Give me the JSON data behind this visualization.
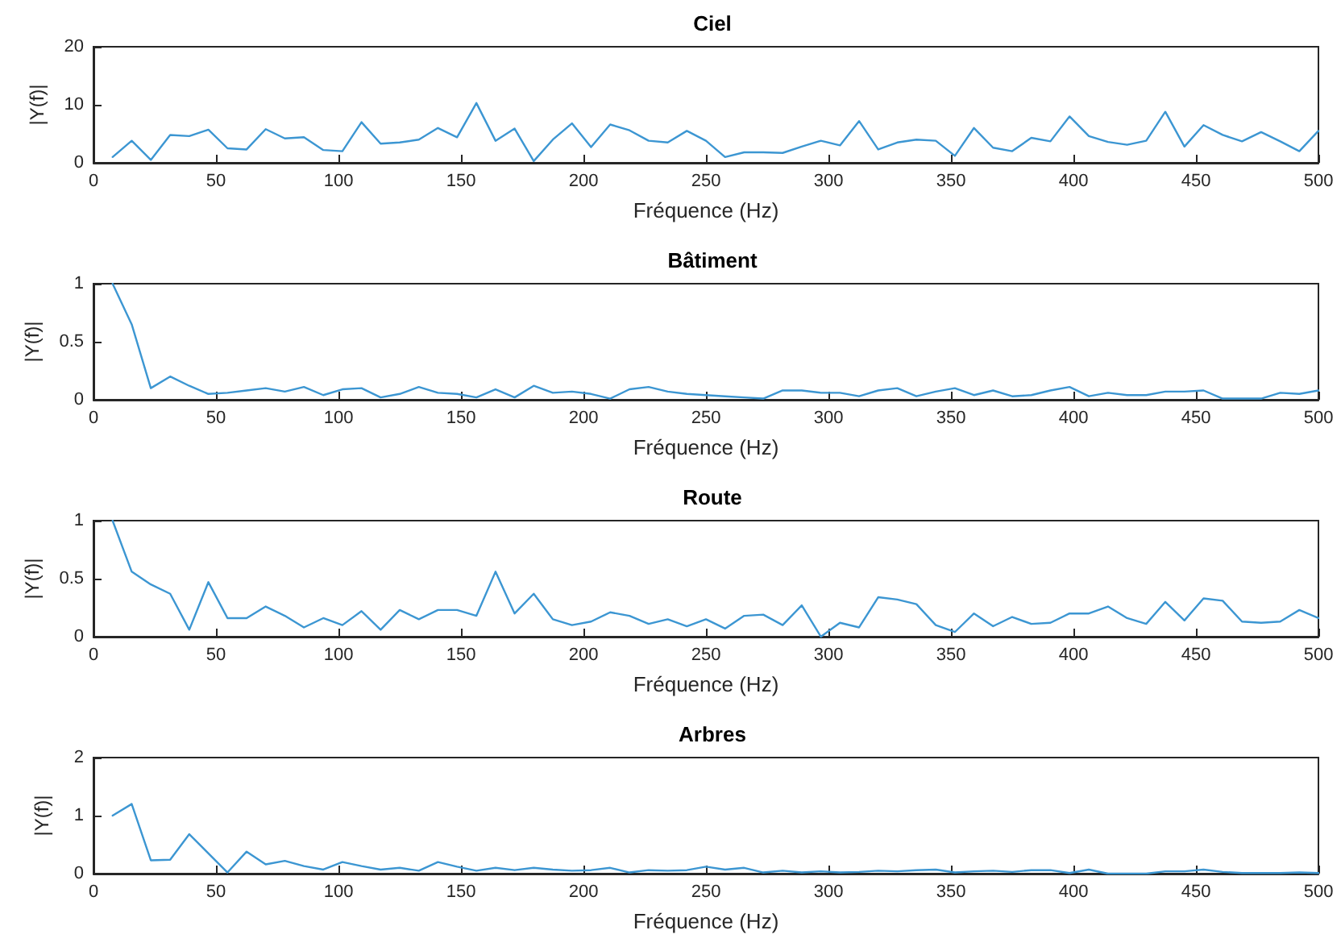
{
  "chart_data": [
    {
      "type": "line",
      "title": "Ciel",
      "xlabel": "Fréquence (Hz)",
      "ylabel": "|Y(f)|",
      "xlim": [
        0,
        500
      ],
      "xticks": [
        0,
        50,
        100,
        150,
        200,
        250,
        300,
        350,
        400,
        450,
        500
      ],
      "ylim": [
        0,
        20
      ],
      "yticks": [
        0,
        10,
        20
      ],
      "grid": false,
      "marker": "none",
      "line_style": "solid",
      "x": [
        7.8,
        15.6,
        23.4,
        31.3,
        39.1,
        46.9,
        54.7,
        62.5,
        70.3,
        78.1,
        85.9,
        93.8,
        101.6,
        109.4,
        117.2,
        125,
        132.8,
        140.6,
        148.4,
        156.3,
        164.1,
        171.9,
        179.7,
        187.5,
        195.3,
        203.1,
        210.9,
        218.8,
        226.6,
        234.4,
        242.2,
        250,
        257.8,
        265.6,
        273.4,
        281.3,
        289.1,
        296.9,
        304.7,
        312.5,
        320.3,
        328.1,
        335.9,
        343.8,
        351.6,
        359.4,
        367.2,
        375,
        382.8,
        390.6,
        398.4,
        406.3,
        414.1,
        421.9,
        429.7,
        437.5,
        445.3,
        453.1,
        460.9,
        468.8,
        476.6,
        484.4,
        492.2,
        500
      ],
      "series": [
        {
          "color": "#3c96d2",
          "values": [
            1,
            3.8,
            0.5,
            4.8,
            4.6,
            5.7,
            2.5,
            2.3,
            5.8,
            4.2,
            4.4,
            2.2,
            2,
            7,
            3.3,
            3.5,
            4,
            6,
            4.4,
            10.3,
            3.8,
            5.9,
            0.3,
            4,
            6.8,
            2.7,
            6.6,
            5.6,
            3.8,
            3.5,
            5.5,
            3.8,
            1,
            1.8,
            1.8,
            1.7,
            2.8,
            3.8,
            3,
            7.2,
            2.3,
            3.5,
            4,
            3.8,
            1.2,
            6,
            2.6,
            2,
            4.3,
            3.7,
            8,
            4.6,
            3.6,
            3.1,
            3.8,
            8.8,
            2.8,
            6.5,
            4.8,
            3.7,
            5.3,
            3.7,
            2,
            5.5
          ]
        }
      ]
    },
    {
      "type": "line",
      "title": "Bâtiment",
      "xlabel": "Fréquence (Hz)",
      "ylabel": "|Y(f)|",
      "xlim": [
        0,
        500
      ],
      "xticks": [
        0,
        50,
        100,
        150,
        200,
        250,
        300,
        350,
        400,
        450,
        500
      ],
      "ylim": [
        0,
        1
      ],
      "yticks": [
        0,
        0.5,
        1
      ],
      "grid": false,
      "marker": "none",
      "line_style": "solid",
      "x": [
        7.8,
        15.6,
        23.4,
        31.3,
        39.1,
        46.9,
        54.7,
        62.5,
        70.3,
        78.1,
        85.9,
        93.8,
        101.6,
        109.4,
        117.2,
        125,
        132.8,
        140.6,
        148.4,
        156.3,
        164.1,
        171.9,
        179.7,
        187.5,
        195.3,
        203.1,
        210.9,
        218.8,
        226.6,
        234.4,
        242.2,
        250,
        257.8,
        265.6,
        273.4,
        281.3,
        289.1,
        296.9,
        304.7,
        312.5,
        320.3,
        328.1,
        335.9,
        343.8,
        351.6,
        359.4,
        367.2,
        375,
        382.8,
        390.6,
        398.4,
        406.3,
        414.1,
        421.9,
        429.7,
        437.5,
        445.3,
        453.1,
        460.9,
        468.8,
        476.6,
        484.4,
        492.2,
        500
      ],
      "series": [
        {
          "color": "#3c96d2",
          "values": [
            1,
            0.65,
            0.1,
            0.2,
            0.12,
            0.05,
            0.06,
            0.08,
            0.1,
            0.07,
            0.11,
            0.04,
            0.09,
            0.1,
            0.02,
            0.05,
            0.11,
            0.06,
            0.05,
            0.02,
            0.09,
            0.02,
            0.12,
            0.06,
            0.07,
            0.05,
            0.01,
            0.09,
            0.11,
            0.07,
            0.05,
            0.04,
            0.03,
            0.02,
            0.01,
            0.08,
            0.08,
            0.06,
            0.06,
            0.03,
            0.08,
            0.1,
            0.03,
            0.07,
            0.1,
            0.04,
            0.08,
            0.03,
            0.04,
            0.08,
            0.11,
            0.03,
            0.06,
            0.04,
            0.04,
            0.07,
            0.07,
            0.08,
            0.01,
            0.01,
            0.01,
            0.06,
            0.05,
            0.08
          ]
        }
      ]
    },
    {
      "type": "line",
      "title": "Route",
      "xlabel": "Fréquence (Hz)",
      "ylabel": "|Y(f)|",
      "xlim": [
        0,
        500
      ],
      "xticks": [
        0,
        50,
        100,
        150,
        200,
        250,
        300,
        350,
        400,
        450,
        500
      ],
      "ylim": [
        0,
        1
      ],
      "yticks": [
        0,
        0.5,
        1
      ],
      "grid": false,
      "marker": "none",
      "line_style": "solid",
      "x": [
        7.8,
        15.6,
        23.4,
        31.3,
        39.1,
        46.9,
        54.7,
        62.5,
        70.3,
        78.1,
        85.9,
        93.8,
        101.6,
        109.4,
        117.2,
        125,
        132.8,
        140.6,
        148.4,
        156.3,
        164.1,
        171.9,
        179.7,
        187.5,
        195.3,
        203.1,
        210.9,
        218.8,
        226.6,
        234.4,
        242.2,
        250,
        257.8,
        265.6,
        273.4,
        281.3,
        289.1,
        296.9,
        304.7,
        312.5,
        320.3,
        328.1,
        335.9,
        343.8,
        351.6,
        359.4,
        367.2,
        375,
        382.8,
        390.6,
        398.4,
        406.3,
        414.1,
        421.9,
        429.7,
        437.5,
        445.3,
        453.1,
        460.9,
        468.8,
        476.6,
        484.4,
        492.2,
        500
      ],
      "series": [
        {
          "color": "#3c96d2",
          "values": [
            1,
            0.56,
            0.45,
            0.37,
            0.06,
            0.47,
            0.16,
            0.16,
            0.26,
            0.18,
            0.08,
            0.16,
            0.1,
            0.22,
            0.06,
            0.23,
            0.15,
            0.23,
            0.23,
            0.18,
            0.56,
            0.2,
            0.37,
            0.15,
            0.1,
            0.13,
            0.21,
            0.18,
            0.11,
            0.15,
            0.09,
            0.15,
            0.07,
            0.18,
            0.19,
            0.1,
            0.27,
            0,
            0.12,
            0.08,
            0.34,
            0.32,
            0.28,
            0.1,
            0.04,
            0.2,
            0.09,
            0.17,
            0.11,
            0.12,
            0.2,
            0.2,
            0.26,
            0.16,
            0.11,
            0.3,
            0.14,
            0.33,
            0.31,
            0.13,
            0.12,
            0.13,
            0.23,
            0.16
          ]
        }
      ]
    },
    {
      "type": "line",
      "title": "Arbres",
      "xlabel": "Fréquence (Hz)",
      "ylabel": "|Y(f)|",
      "xlim": [
        0,
        500
      ],
      "xticks": [
        0,
        50,
        100,
        150,
        200,
        250,
        300,
        350,
        400,
        450,
        500
      ],
      "ylim": [
        0,
        2
      ],
      "yticks": [
        0,
        1,
        2
      ],
      "grid": false,
      "marker": "none",
      "line_style": "solid",
      "x": [
        7.8,
        15.6,
        23.4,
        31.3,
        39.1,
        46.9,
        54.7,
        62.5,
        70.3,
        78.1,
        85.9,
        93.8,
        101.6,
        109.4,
        117.2,
        125,
        132.8,
        140.6,
        148.4,
        156.3,
        164.1,
        171.9,
        179.7,
        187.5,
        195.3,
        203.1,
        210.9,
        218.8,
        226.6,
        234.4,
        242.2,
        250,
        257.8,
        265.6,
        273.4,
        281.3,
        289.1,
        296.9,
        304.7,
        312.5,
        320.3,
        328.1,
        335.9,
        343.8,
        351.6,
        359.4,
        367.2,
        375,
        382.8,
        390.6,
        398.4,
        406.3,
        414.1,
        421.9,
        429.7,
        437.5,
        445.3,
        453.1,
        460.9,
        468.8,
        476.6,
        484.4,
        492.2,
        500
      ],
      "series": [
        {
          "color": "#3c96d2",
          "values": [
            1,
            1.2,
            0.23,
            0.24,
            0.68,
            0.35,
            0.02,
            0.38,
            0.16,
            0.22,
            0.13,
            0.07,
            0.2,
            0.13,
            0.07,
            0.1,
            0.05,
            0.2,
            0.12,
            0.05,
            0.1,
            0.06,
            0.1,
            0.07,
            0.05,
            0.06,
            0.1,
            0.02,
            0.06,
            0.05,
            0.06,
            0.12,
            0.07,
            0.1,
            0.02,
            0.05,
            0.02,
            0.04,
            0.02,
            0.03,
            0.05,
            0.04,
            0.06,
            0.07,
            0.02,
            0.04,
            0.05,
            0.03,
            0.06,
            0.06,
            0.01,
            0.07,
            0,
            0,
            0,
            0.04,
            0.04,
            0.07,
            0.03,
            0.01,
            0.01,
            0.01,
            0.02,
            0.01
          ]
        }
      ]
    }
  ]
}
